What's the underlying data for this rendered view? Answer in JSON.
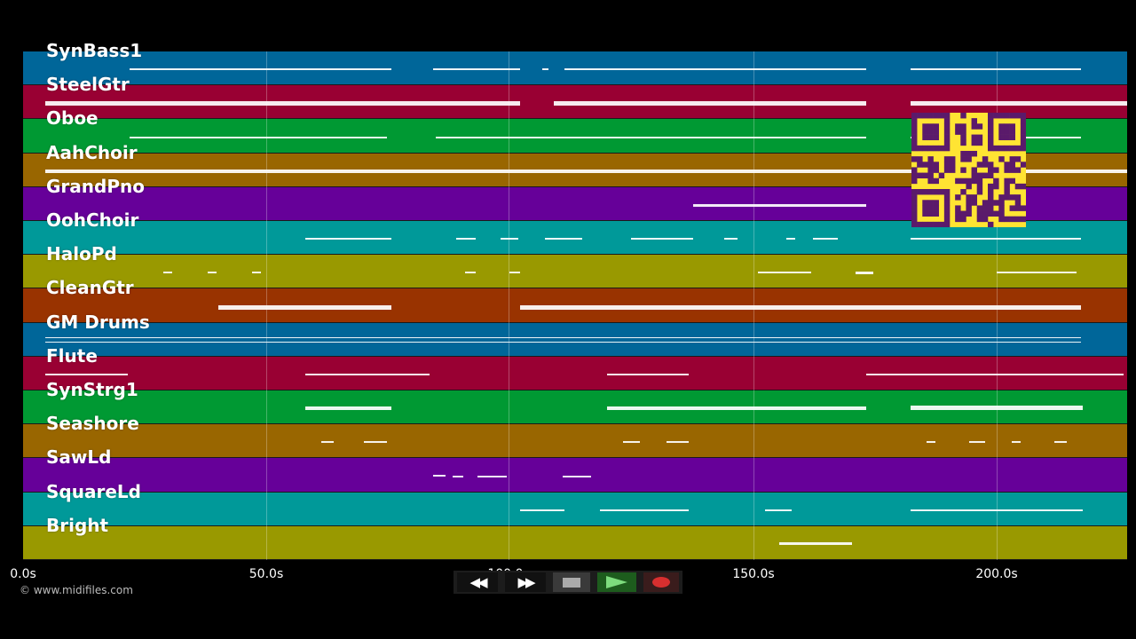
{
  "tracks": [
    {
      "label": "SynBass1",
      "color": "#006699"
    },
    {
      "label": "SteelGtr",
      "color": "#990033"
    },
    {
      "label": "Oboe",
      "color": "#009933"
    },
    {
      "label": "AahChoir",
      "color": "#996600"
    },
    {
      "label": "GrandPno",
      "color": "#660099"
    },
    {
      "label": "OohChoir",
      "color": "#009999"
    },
    {
      "label": "HaloPd",
      "color": "#999900"
    },
    {
      "label": "CleanGtr",
      "color": "#993300"
    },
    {
      "label": "GM Drums",
      "color": "#006699"
    },
    {
      "label": "Flute",
      "color": "#990033"
    },
    {
      "label": "SynStrg1",
      "color": "#009933"
    },
    {
      "label": "Seashore",
      "color": "#996600"
    },
    {
      "label": "SawLd",
      "color": "#660099"
    },
    {
      "label": "SquareLd",
      "color": "#009999"
    },
    {
      "label": "Bright",
      "color": "#999900"
    }
  ],
  "timeline": {
    "ticks": [
      "0.0s",
      "50.0s",
      "100.0s",
      "150.0s",
      "200.0s"
    ]
  },
  "copyright": "© www.midifiles.com",
  "controls": {
    "rewind_icon": "rewind-icon",
    "forward_icon": "fast-forward-icon",
    "stop_icon": "stop-icon",
    "play_icon": "play-icon",
    "record_icon": "record-icon"
  },
  "qr": {
    "icon": "qr-code-icon",
    "fg": "#5a1a6b",
    "bg": "#ffe433"
  }
}
